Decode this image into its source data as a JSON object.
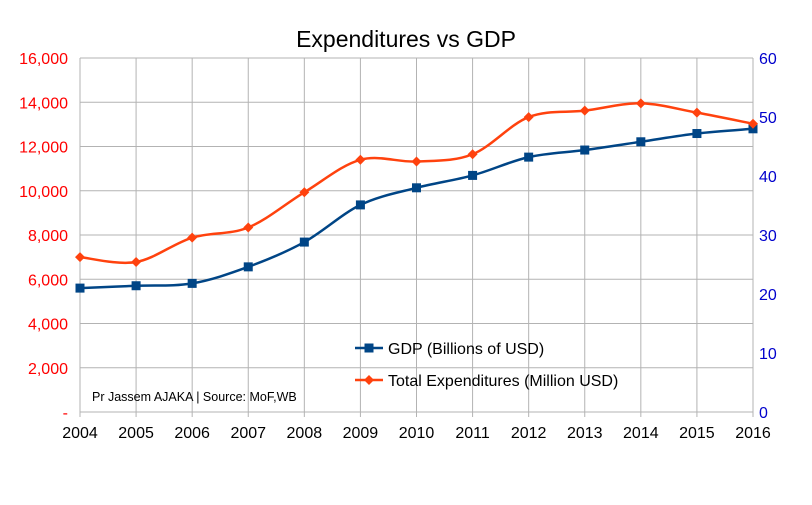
{
  "chart_data": {
    "type": "line",
    "title": "Expenditures vs GDP",
    "annotation": "Pr Jassem AJAKA | Source: MoF,WB",
    "categories": [
      "2004",
      "2005",
      "2006",
      "2007",
      "2008",
      "2009",
      "2010",
      "2011",
      "2012",
      "2013",
      "2014",
      "2015",
      "2016"
    ],
    "y_left": {
      "ticks": [
        "-",
        "2,000",
        "4,000",
        "6,000",
        "8,000",
        "10,000",
        "12,000",
        "14,000",
        "16,000"
      ],
      "ylim": [
        0,
        16000
      ],
      "color": "#ff0000"
    },
    "y_right": {
      "ticks": [
        "0",
        "10",
        "20",
        "30",
        "40",
        "50",
        "60"
      ],
      "ylim": [
        0,
        60
      ],
      "color": "#0000cc"
    },
    "grid": true,
    "legend_position": "lower-center",
    "series": [
      {
        "name": "GDP (Billions of USD)",
        "axis": "right",
        "color": "#004586",
        "marker": "square",
        "values": [
          21.0,
          21.4,
          21.8,
          24.6,
          28.8,
          35.1,
          38.0,
          40.1,
          43.2,
          44.4,
          45.8,
          47.2,
          48.0
        ]
      },
      {
        "name": "Total Expenditures (Million USD)",
        "axis": "left",
        "color": "#ff420e",
        "marker": "diamond",
        "values": [
          7000,
          6780,
          7880,
          8340,
          9930,
          11400,
          11320,
          11650,
          13330,
          13620,
          13950,
          13530,
          13030
        ]
      }
    ]
  }
}
